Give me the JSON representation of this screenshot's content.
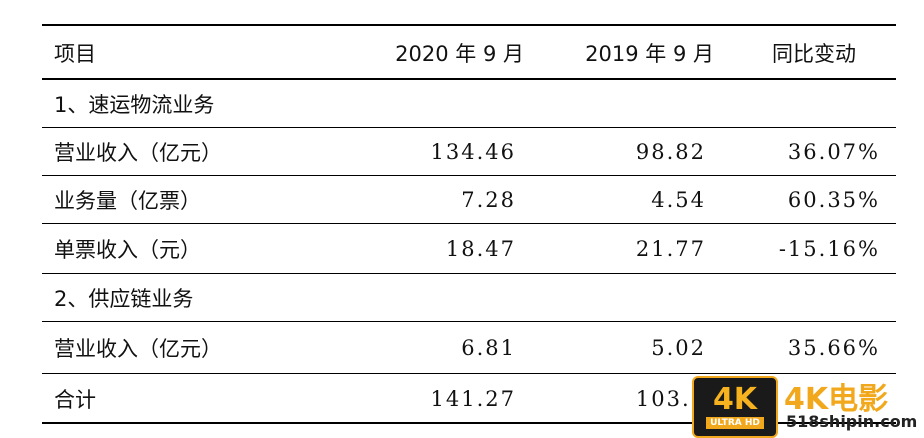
{
  "table": {
    "headers": [
      "项目",
      "2020 年 9 月",
      "2019 年 9 月",
      "同比变动"
    ],
    "sections": [
      {
        "title": "1、速运物流业务",
        "rows": [
          {
            "label": "营业收入（亿元）",
            "v2020": "134.46",
            "v2019": "98.82",
            "change": "36.07%"
          },
          {
            "label": "业务量（亿票）",
            "v2020": "7.28",
            "v2019": "4.54",
            "change": "60.35%"
          },
          {
            "label": "单票收入（元）",
            "v2020": "18.47",
            "v2019": "21.77",
            "change": "-15.16%"
          }
        ]
      },
      {
        "title": "2、供应链业务",
        "rows": [
          {
            "label": "营业收入（亿元）",
            "v2020": "6.81",
            "v2019": "5.02",
            "change": "35.66%"
          }
        ]
      }
    ],
    "total": {
      "label": "合计",
      "v2020": "141.27",
      "v2019": "103.8",
      "change": ""
    }
  },
  "watermark": {
    "badge_big": "4K",
    "badge_small": "ULTRA HD",
    "title": "4K电影",
    "url": "518shipin.com",
    "colors": {
      "accent": "#f2a81d",
      "badge_bg": "#1a1a1a"
    }
  }
}
